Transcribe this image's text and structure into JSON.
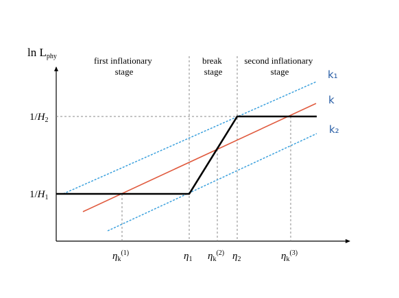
{
  "y_axis": {
    "label_main": "ln L",
    "label_sub": "phy",
    "ticks": [
      {
        "prefix": "1/",
        "var": "H",
        "sub": "1"
      },
      {
        "prefix": "1/",
        "var": "H",
        "sub": "2"
      }
    ]
  },
  "x_axis": {
    "ticks": [
      {
        "var": "η",
        "sub": "k",
        "sup": "(1)"
      },
      {
        "var": "η",
        "sub": "1",
        "sup": ""
      },
      {
        "var": "η",
        "sub": "k",
        "sup": "(2)"
      },
      {
        "var": "η",
        "sub": "2",
        "sup": ""
      },
      {
        "var": "η",
        "sub": "k",
        "sup": "(3)"
      }
    ]
  },
  "stages": [
    {
      "line1": "first inflationary",
      "line2": "stage"
    },
    {
      "line1": "break",
      "line2": "stage"
    },
    {
      "line1": "second inflationary",
      "line2": "stage"
    }
  ],
  "lines": {
    "k1_label": "k₁",
    "k_label": "k",
    "k2_label": "k₂"
  },
  "colors": {
    "hubble_curve": "#000000",
    "k_line": "#e05a3e",
    "k1_k2_lines": "#3aa0dd",
    "guides": "#888888",
    "line_labels": "#2b5fa6"
  }
}
